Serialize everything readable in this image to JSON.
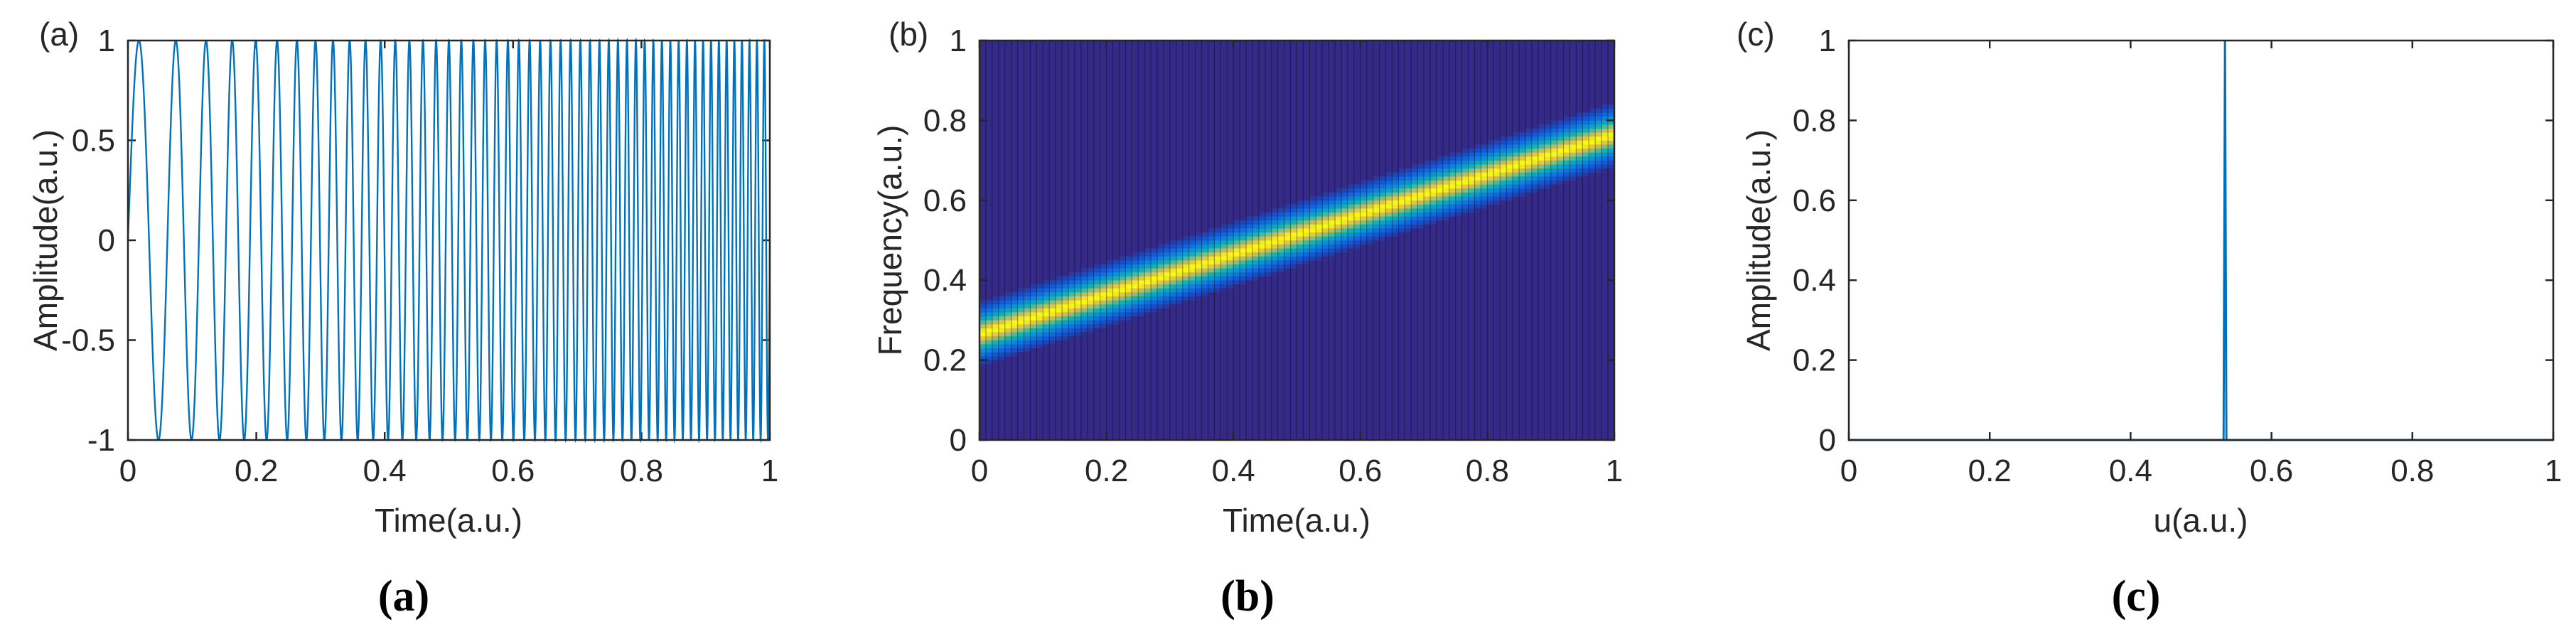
{
  "colors": {
    "line": "#0072BD",
    "axes": "#262626",
    "heat_low": "#352A87",
    "heat_high": "#F9FB0E"
  },
  "chart_data": [
    {
      "panel_tag": "(a)",
      "caption": "(a)",
      "type": "line",
      "description": "linear chirp signal, cos(2π(f0 t + k t²/2))",
      "xlabel": "Time(a.u.)",
      "ylabel": "Amplitude(a.u.)",
      "xlim": [
        0,
        1
      ],
      "ylim": [
        -1,
        1
      ],
      "xticks": [
        0,
        0.2,
        0.4,
        0.6,
        0.8,
        1
      ],
      "xtick_labels": [
        "0",
        "0.2",
        "0.4",
        "0.6",
        "0.8",
        "1"
      ],
      "yticks": [
        -1,
        -0.5,
        0,
        0.5,
        1
      ],
      "ytick_labels": [
        "-1",
        "-0.5",
        "0",
        "0.5",
        "1"
      ],
      "series": [
        {
          "phase_start": -0.25,
          "freq_start": 14,
          "freq_end": 88
        }
      ]
    },
    {
      "panel_tag": "(b)",
      "caption": "(b)",
      "type": "heatmap",
      "description": "time-frequency distribution of the chirp; ridge rises linearly",
      "xlabel": "Time(a.u.)",
      "ylabel": "Frequency(a.u.)",
      "xlim": [
        0,
        1
      ],
      "ylim": [
        0,
        1
      ],
      "xticks": [
        0,
        0.2,
        0.4,
        0.6,
        0.8,
        1
      ],
      "xtick_labels": [
        "0",
        "0.2",
        "0.4",
        "0.6",
        "0.8",
        "1"
      ],
      "yticks": [
        0,
        0.2,
        0.4,
        0.6,
        0.8,
        1
      ],
      "ytick_labels": [
        "0",
        "0.2",
        "0.4",
        "0.6",
        "0.8",
        "1"
      ],
      "ridge": {
        "freq_at_t0": 0.265,
        "freq_at_t1": 0.765,
        "width": 0.045
      },
      "grid_cells": {
        "time": 100,
        "freq": 100
      }
    },
    {
      "panel_tag": "(c)",
      "caption": "(c)",
      "type": "line",
      "description": "single sharp peak",
      "xlabel": "u(a.u.)",
      "ylabel": "Amplitude(a.u.)",
      "xlim": [
        0,
        1
      ],
      "ylim": [
        0,
        1
      ],
      "xticks": [
        0,
        0.2,
        0.4,
        0.6,
        0.8,
        1
      ],
      "xtick_labels": [
        "0",
        "0.2",
        "0.4",
        "0.6",
        "0.8",
        "1"
      ],
      "yticks": [
        0,
        0.2,
        0.4,
        0.6,
        0.8,
        1
      ],
      "ytick_labels": [
        "0",
        "0.2",
        "0.4",
        "0.6",
        "0.8",
        "1"
      ],
      "series": [
        {
          "x": [
            0,
            0.532,
            0.534,
            0.536,
            1
          ],
          "y": [
            0,
            0,
            1,
            0,
            0
          ]
        }
      ]
    }
  ]
}
